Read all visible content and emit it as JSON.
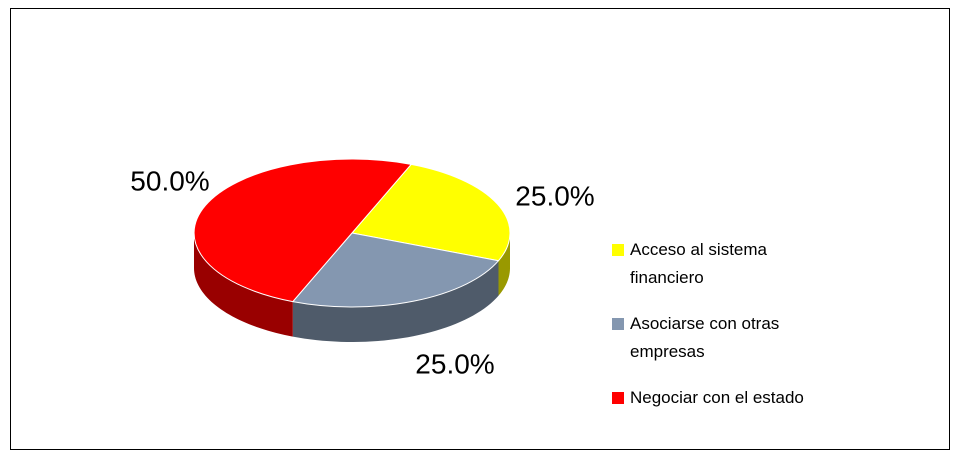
{
  "chart_data": {
    "type": "pie",
    "categories": [
      "Acceso al sistema financiero",
      "Asociarse con otras empresas",
      "Negociar con el estado"
    ],
    "values": [
      25,
      25,
      50
    ],
    "value_labels": [
      "25.0%",
      "25.0%",
      "50.0%"
    ],
    "colors": [
      "#ffff00",
      "#8497b0",
      "#ff0000"
    ],
    "legend": "right"
  }
}
